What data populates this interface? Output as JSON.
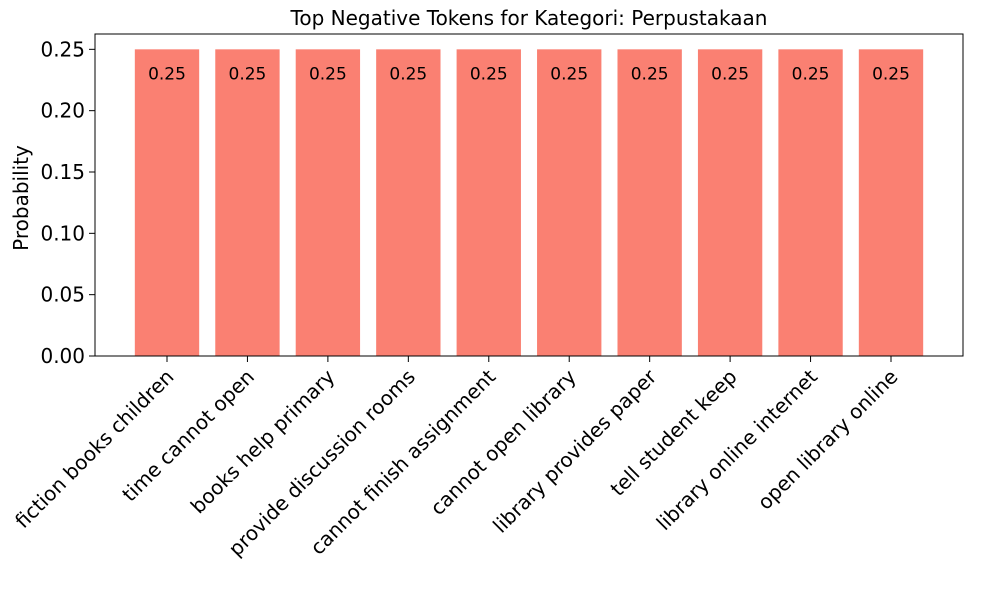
{
  "chart_data": {
    "type": "bar",
    "title": "Top Negative Tokens for Kategori: Perpustakaan",
    "xlabel": "",
    "ylabel": "Probability",
    "categories": [
      "fiction books children",
      "time cannot open",
      "books help primary",
      "provide discussion rooms",
      "cannot finish assignment",
      "cannot open library",
      "library provides paper",
      "tell student keep",
      "library online internet",
      "open library online"
    ],
    "values": [
      0.25,
      0.25,
      0.25,
      0.25,
      0.25,
      0.25,
      0.25,
      0.25,
      0.25,
      0.25
    ],
    "data_labels": [
      "0.25",
      "0.25",
      "0.25",
      "0.25",
      "0.25",
      "0.25",
      "0.25",
      "0.25",
      "0.25",
      "0.25"
    ],
    "ylim": [
      0,
      0.2625
    ],
    "yticks": [
      0.0,
      0.05,
      0.1,
      0.15,
      0.2,
      0.25
    ],
    "ytick_labels": [
      "0.00",
      "0.05",
      "0.10",
      "0.15",
      "0.20",
      "0.25"
    ],
    "bar_color": "#fa8072",
    "grid": false,
    "legend": "none"
  }
}
